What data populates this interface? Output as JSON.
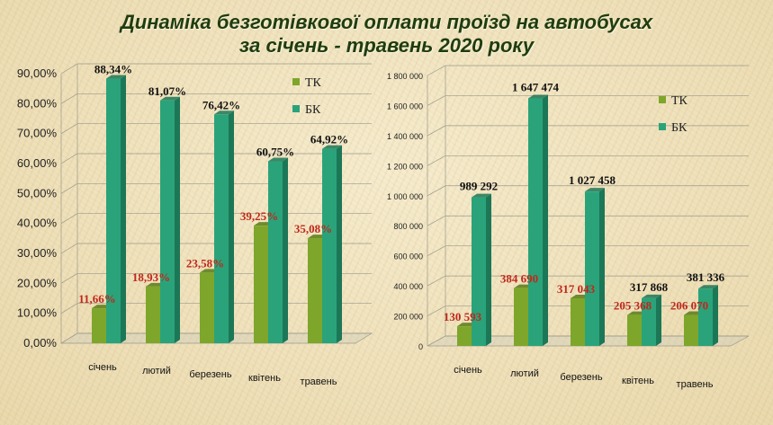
{
  "title_line1": "Динаміка безготівкової оплати проїзд на автобусах",
  "title_line2": "за січень - травень 2020 року",
  "colors": {
    "tk": "#7ea62a",
    "tk_dark": "#587a16",
    "bk": "#2aa37a",
    "bk_dark": "#1c7757",
    "tk_label": "#c0281c",
    "grid": "#9a9a8a"
  },
  "chart_data": [
    {
      "type": "bar",
      "categories": [
        "січень",
        "лютий",
        "березень",
        "квітень",
        "травень"
      ],
      "series": [
        {
          "name": "ТК",
          "values": [
            11.66,
            18.93,
            23.58,
            39.25,
            35.08
          ],
          "labels": [
            "11,66%",
            "18,93%",
            "23,58%",
            "39,25%",
            "35,08%"
          ]
        },
        {
          "name": "БК",
          "values": [
            88.34,
            81.07,
            76.42,
            60.75,
            64.92
          ],
          "labels": [
            "88,34%",
            "81,07%",
            "76,42%",
            "60,75%",
            "64,92%"
          ]
        }
      ],
      "ylim": [
        0,
        90
      ],
      "ytick_labels": [
        "0,00%",
        "10,00%",
        "20,00%",
        "30,00%",
        "40,00%",
        "50,00%",
        "60,00%",
        "70,00%",
        "80,00%",
        "90,00%"
      ],
      "legend_position": "top-right",
      "grid": true
    },
    {
      "type": "bar",
      "categories": [
        "січень",
        "лютий",
        "березень",
        "квітень",
        "травень"
      ],
      "series": [
        {
          "name": "ТК",
          "values": [
            130593,
            384690,
            317043,
            205368,
            206070
          ],
          "labels": [
            "130 593",
            "384 690",
            "317 043",
            "205 368",
            "206 070"
          ]
        },
        {
          "name": "БК",
          "values": [
            989292,
            1647474,
            1027458,
            317868,
            381336
          ],
          "labels": [
            "989 292",
            "1 647 474",
            "1 027 458",
            "317 868",
            "381 336"
          ]
        }
      ],
      "ylim": [
        0,
        1800000
      ],
      "ytick_labels": [
        "0",
        "200 000",
        "400 000",
        "600 000",
        "800 000",
        "1 000 000",
        "1 200 000",
        "1 400 000",
        "1 600 000",
        "1 800 000"
      ],
      "legend_position": "top-right",
      "grid": true
    }
  ]
}
